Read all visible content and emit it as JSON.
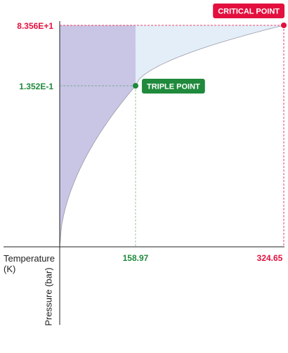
{
  "chart_data": {
    "type": "phase-diagram",
    "x_label": "Temperature (K)",
    "y_label": "Pressure (bar)",
    "xlim": [
      74.2,
      324.65
    ],
    "ylim": [
      5e-09,
      83.56
    ],
    "y_scale": "log",
    "xticks": [
      158.97,
      324.65
    ],
    "yticks": [
      {
        "value": 83.56,
        "label": "8.356E+1"
      },
      {
        "value": 0.1352,
        "label": "1.352E-1"
      }
    ],
    "points": [
      {
        "name": "TRIPLE POINT",
        "x": 158.97,
        "y": 0.1352,
        "color": "#1f8a3c"
      },
      {
        "name": "CRITICAL POINT",
        "x": 324.65,
        "y": 83.56,
        "color": "#e3103f"
      }
    ]
  }
}
